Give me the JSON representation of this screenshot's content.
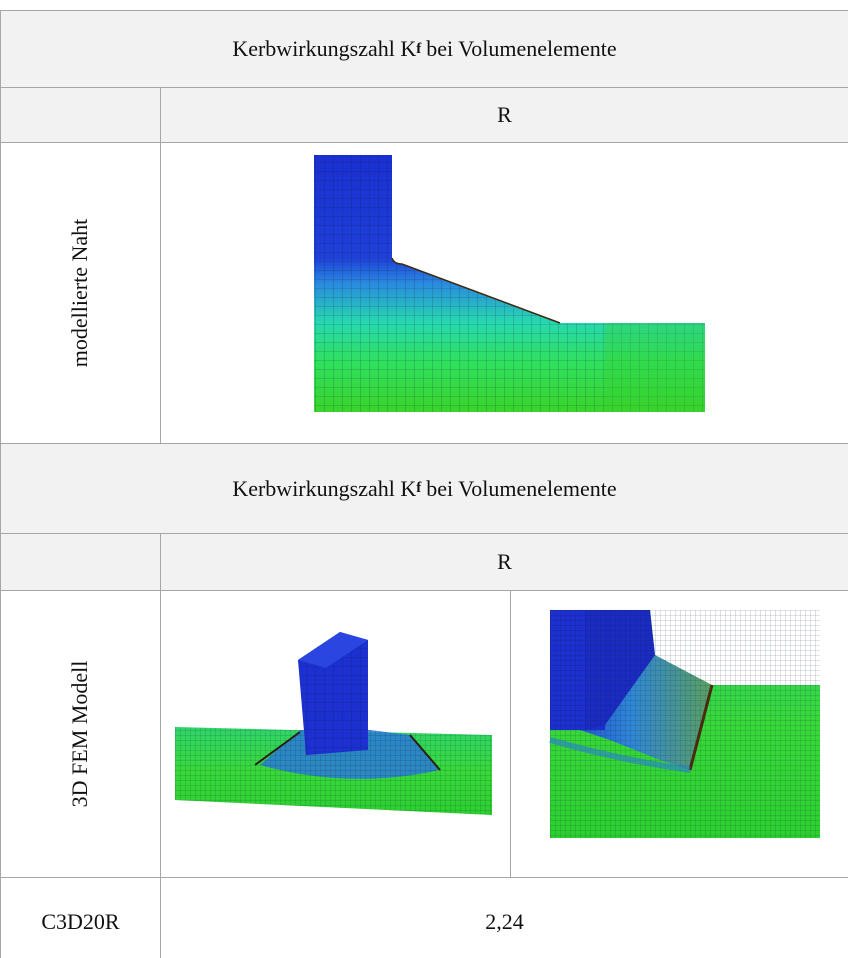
{
  "table": {
    "sections": [
      {
        "header": {
          "title": "Kerbwirkungszahl K",
          "subscript": "f",
          "title_rest": "bei Volumenelemente"
        },
        "column": "R",
        "row_label": "modellierte Naht"
      },
      {
        "header": {
          "title": "Kerbwirkungszahl K",
          "subscript": "f",
          "title_rest": "bei Volumenelemente"
        },
        "column": "R",
        "row_label": "3D FEM Modell"
      }
    ],
    "result": {
      "label": "C3D20R",
      "value": "2,24"
    }
  }
}
